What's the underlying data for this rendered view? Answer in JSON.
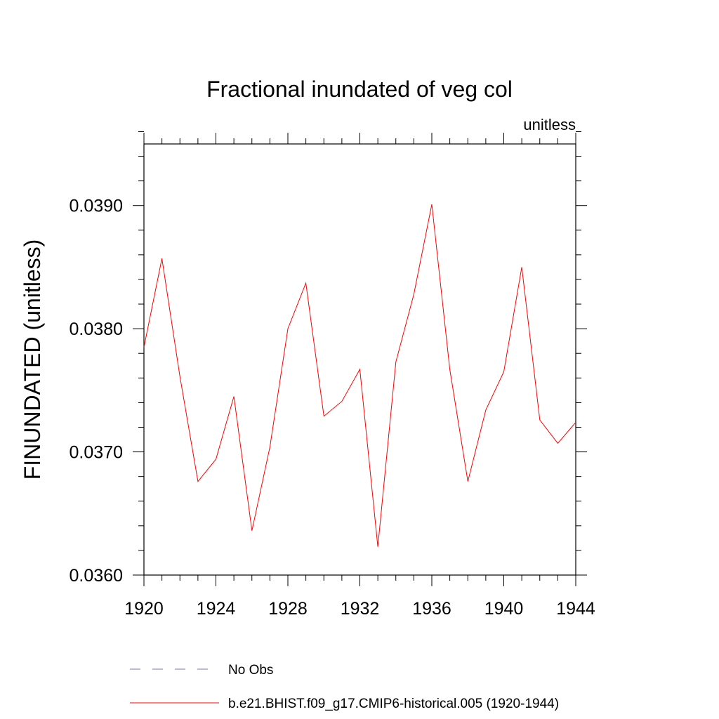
{
  "chart_data": {
    "type": "line",
    "title": "Fractional inundated of veg col",
    "units_label": "unitless",
    "ylabel": "FINUNDATED  (unitless)",
    "xlabel": "",
    "xlim": [
      1920,
      1944
    ],
    "ylim": [
      0.036,
      0.0395
    ],
    "x_major_ticks": [
      1920,
      1924,
      1928,
      1932,
      1936,
      1940,
      1944
    ],
    "x_major_tick_labels": [
      "1920",
      "1924",
      "1928",
      "1932",
      "1936",
      "1940",
      "1944"
    ],
    "y_major_ticks": [
      0.036,
      0.037,
      0.038,
      0.039
    ],
    "y_major_tick_labels": [
      "0.0360",
      "0.0370",
      "0.0380",
      "0.0390"
    ],
    "x_minor_step": 1,
    "y_minor_step": 0.0002,
    "series": [
      {
        "name": "b.e21.BHIST.f09_g17.CMIP6-historical.005 (1920-1944)",
        "color": "#ff0000",
        "style": "solid",
        "x": [
          1920,
          1921,
          1922,
          1923,
          1924,
          1925,
          1926,
          1927,
          1928,
          1929,
          1930,
          1931,
          1932,
          1933,
          1934,
          1935,
          1936,
          1937,
          1938,
          1939,
          1940,
          1941,
          1942,
          1943,
          1944
        ],
        "values": [
          0.03785,
          0.03857,
          0.03761,
          0.03676,
          0.03694,
          0.03745,
          0.03636,
          0.03704,
          0.038,
          0.03837,
          0.03729,
          0.03741,
          0.03767,
          0.03623,
          0.03773,
          0.03828,
          0.03901,
          0.03767,
          0.03676,
          0.03734,
          0.03765,
          0.0385,
          0.03726,
          0.03707,
          0.03724
        ]
      }
    ],
    "legend": [
      {
        "label": "No Obs",
        "color": "#7b6fc4",
        "style": "dashed"
      },
      {
        "label": "b.e21.BHIST.f09_g17.CMIP6-historical.005 (1920-1944)",
        "color": "#ff0000",
        "style": "solid"
      }
    ]
  }
}
